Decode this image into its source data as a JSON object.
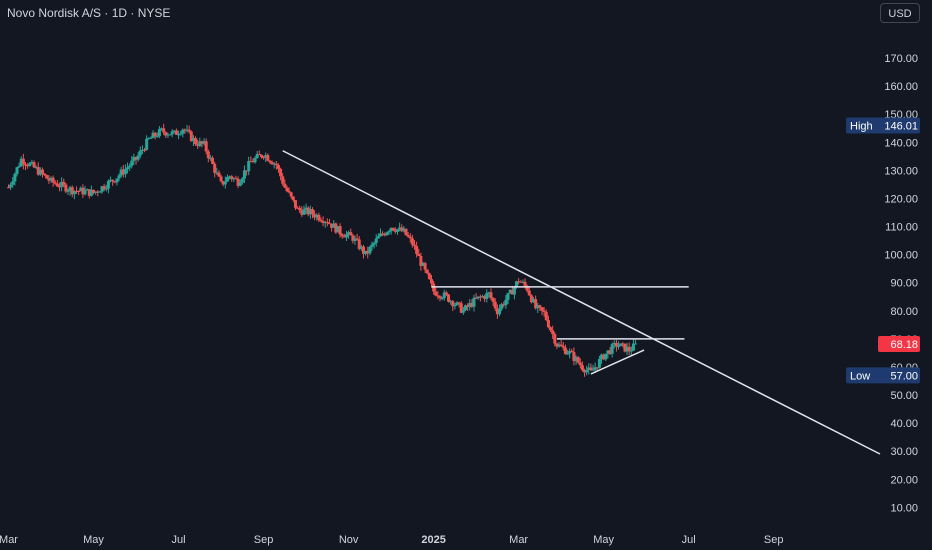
{
  "header": {
    "title": "Novo Nordisk A/S · 1D · NYSE",
    "currency": "USD"
  },
  "colors": {
    "background": "#131722",
    "up": "#26a69a",
    "down": "#ef5350",
    "text": "#d1d4dc",
    "line": "#e0e3eb",
    "label_bg": "#1e3a6e",
    "price_bg": "#f23645"
  },
  "chart_data": {
    "type": "candlestick",
    "y_ticks": [
      "170.00",
      "160.00",
      "150.00",
      "140.00",
      "130.00",
      "120.00",
      "110.00",
      "100.00",
      "90.00",
      "80.00",
      "70.00",
      "60.00",
      "50.00",
      "40.00",
      "30.00",
      "20.00",
      "10.00"
    ],
    "y_tick_values": [
      170,
      160,
      150,
      140,
      130,
      120,
      110,
      100,
      90,
      80,
      70,
      60,
      50,
      40,
      30,
      20,
      10
    ],
    "ylim": [
      5.5,
      180
    ],
    "x_ticks": [
      {
        "label": "Mar",
        "pos": 0
      },
      {
        "label": "May",
        "pos": 2
      },
      {
        "label": "Jul",
        "pos": 4
      },
      {
        "label": "Sep",
        "pos": 6
      },
      {
        "label": "Nov",
        "pos": 8
      },
      {
        "label": "2025",
        "pos": 10,
        "bold": true
      },
      {
        "label": "Mar",
        "pos": 12
      },
      {
        "label": "May",
        "pos": 14
      },
      {
        "label": "Jul",
        "pos": 16
      },
      {
        "label": "Sep",
        "pos": 18
      }
    ],
    "x_range_months": [
      -0.2,
      20.5
    ],
    "high_label": {
      "text": "High",
      "value": "146.01",
      "y": 146.01
    },
    "low_label": {
      "text": "Low",
      "value": "57.00",
      "y": 57.0
    },
    "last_price": {
      "value": "68.18",
      "y": 68.18
    },
    "price_anchors": [
      [
        0.0,
        124
      ],
      [
        0.3,
        134
      ],
      [
        0.6,
        131
      ],
      [
        1.0,
        126
      ],
      [
        1.5,
        123
      ],
      [
        2.0,
        122
      ],
      [
        2.5,
        127
      ],
      [
        3.0,
        134
      ],
      [
        3.3,
        141
      ],
      [
        3.6,
        144
      ],
      [
        3.9,
        143
      ],
      [
        4.1,
        145
      ],
      [
        4.4,
        140
      ],
      [
        4.6,
        139
      ],
      [
        4.8,
        132
      ],
      [
        5.0,
        125
      ],
      [
        5.2,
        128
      ],
      [
        5.4,
        126
      ],
      [
        5.7,
        133
      ],
      [
        6.0,
        136
      ],
      [
        6.3,
        132
      ],
      [
        6.5,
        124
      ],
      [
        6.8,
        116
      ],
      [
        7.1,
        115
      ],
      [
        7.5,
        112
      ],
      [
        7.8,
        108
      ],
      [
        8.1,
        106
      ],
      [
        8.4,
        100
      ],
      [
        8.7,
        106
      ],
      [
        9.0,
        110
      ],
      [
        9.3,
        108
      ],
      [
        9.5,
        104
      ],
      [
        10.0,
        87
      ],
      [
        10.3,
        85
      ],
      [
        10.7,
        80
      ],
      [
        11.0,
        84
      ],
      [
        11.3,
        86
      ],
      [
        11.5,
        80
      ],
      [
        11.8,
        86
      ],
      [
        12.0,
        91
      ],
      [
        12.2,
        88
      ],
      [
        12.4,
        81
      ],
      [
        12.6,
        79
      ],
      [
        12.9,
        68
      ],
      [
        13.2,
        65
      ],
      [
        13.5,
        60
      ],
      [
        13.7,
        58
      ],
      [
        14.0,
        64
      ],
      [
        14.3,
        68
      ],
      [
        14.6,
        66
      ],
      [
        14.8,
        68.18
      ]
    ],
    "trendlines": [
      {
        "x1": 6.45,
        "y1": 137,
        "x2": 20.5,
        "y2": 29
      },
      {
        "x1": 9.95,
        "y1": 88.5,
        "x2": 16.0,
        "y2": 88.5
      },
      {
        "x1": 12.9,
        "y1": 70,
        "x2": 15.9,
        "y2": 70
      },
      {
        "x1": 13.7,
        "y1": 57.5,
        "x2": 14.95,
        "y2": 66
      }
    ]
  }
}
